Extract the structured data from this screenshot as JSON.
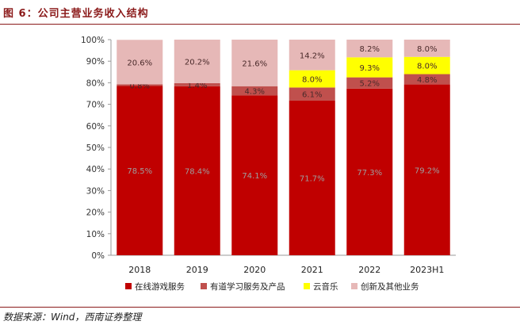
{
  "figure": {
    "title": "图 6：公司主营业务收入结构",
    "source": "数据来源：Wind，西南证券整理"
  },
  "colors": {
    "title": "#8b1a1a",
    "rule": "#8b1a1a",
    "series": [
      "#c00000",
      "#c0504d",
      "#ffff00",
      "#e6b8b7"
    ]
  },
  "chart_data": {
    "type": "bar",
    "stacked": true,
    "categories": [
      "2018",
      "2019",
      "2020",
      "2021",
      "2022",
      "2023H1"
    ],
    "series": [
      {
        "name": "在线游戏服务",
        "values": [
          78.5,
          78.4,
          74.1,
          71.7,
          77.3,
          79.2
        ]
      },
      {
        "name": "有道学习服务及产品",
        "values": [
          0.8,
          1.4,
          4.3,
          6.1,
          5.2,
          4.8
        ]
      },
      {
        "name": "云音乐",
        "values": [
          0,
          0,
          0,
          8.0,
          9.3,
          8.0
        ]
      },
      {
        "name": "创新及其他业务",
        "values": [
          20.6,
          20.2,
          21.6,
          14.2,
          8.2,
          8.0
        ]
      }
    ],
    "data_labels": [
      [
        "78.5%",
        "78.4%",
        "74.1%",
        "71.7%",
        "77.3%",
        "79.2%"
      ],
      [
        "0.8%",
        "1.4%",
        "4.3%",
        "6.1%",
        "5.2%",
        "4.8%"
      ],
      [
        "",
        "",
        "",
        "8.0%",
        "9.3%",
        "8.0%"
      ],
      [
        "20.6%",
        "20.2%",
        "21.6%",
        "14.2%",
        "8.2%",
        "8.0%"
      ]
    ],
    "ylim": [
      0,
      100
    ],
    "yticks": [
      "0%",
      "10%",
      "20%",
      "30%",
      "40%",
      "50%",
      "60%",
      "70%",
      "80%",
      "90%",
      "100%"
    ],
    "legend_position": "bottom",
    "grid": false
  }
}
